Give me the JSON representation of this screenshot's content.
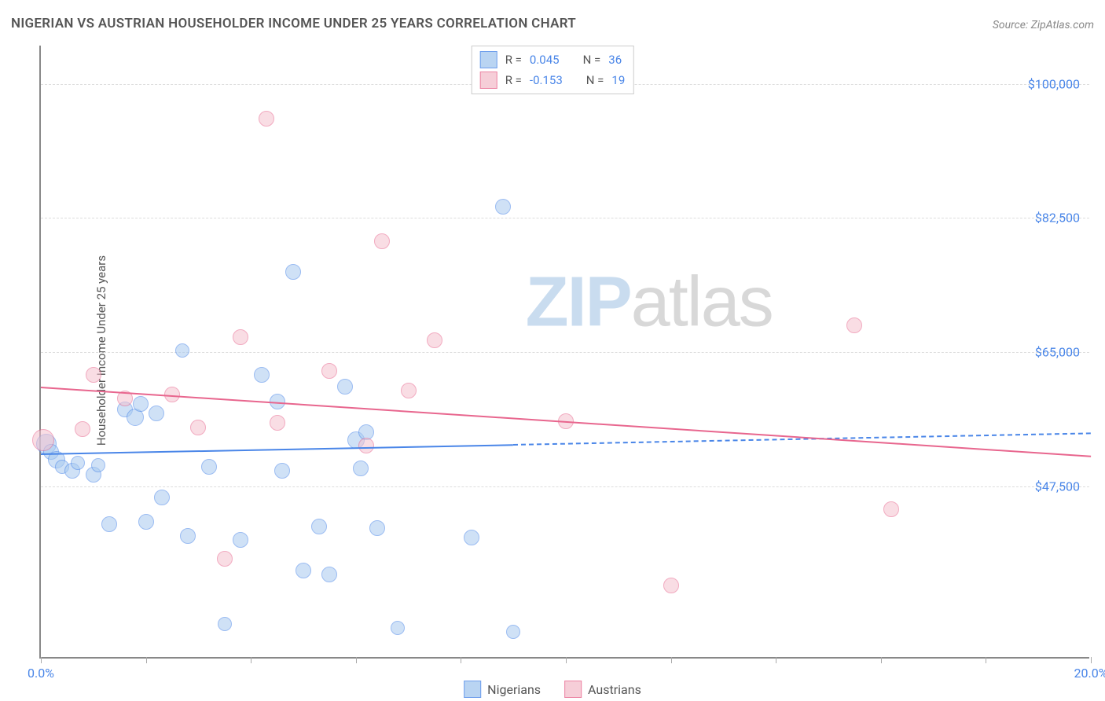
{
  "title": "NIGERIAN VS AUSTRIAN HOUSEHOLDER INCOME UNDER 25 YEARS CORRELATION CHART",
  "source": "Source: ZipAtlas.com",
  "y_axis_label": "Householder Income Under 25 years",
  "watermark_zip": "ZIP",
  "watermark_atlas": "atlas",
  "chart": {
    "type": "scatter",
    "background_color": "#ffffff",
    "grid_color": "#dddddd",
    "axis_color": "#888888",
    "xlim": [
      0,
      20
    ],
    "ylim": [
      25000,
      105000
    ],
    "x_ticks": [
      0,
      2,
      4,
      6,
      8,
      10,
      12,
      14,
      16,
      18,
      20
    ],
    "x_tick_labels": {
      "0": "0.0%",
      "20": "20.0%"
    },
    "y_gridlines": [
      47500,
      65000,
      82500,
      100000
    ],
    "y_tick_labels": {
      "47500": "$47,500",
      "65000": "$65,000",
      "82500": "$82,500",
      "100000": "$100,000"
    },
    "series": [
      {
        "name": "Nigerians",
        "fill_color": "#a8caf0",
        "stroke_color": "#4a86e8",
        "fill_opacity": 0.55,
        "marker_radius": 10,
        "r_value": "0.045",
        "n_value": "36",
        "trend": {
          "x1": 0,
          "y1": 51800,
          "x2": 9,
          "y2": 53000,
          "x2_dash": 20,
          "y2_dash": 54500,
          "color": "#4a86e8",
          "width": 2.5
        },
        "points": [
          {
            "x": 0.1,
            "y": 53000,
            "r": 13
          },
          {
            "x": 0.2,
            "y": 52000,
            "r": 10
          },
          {
            "x": 0.3,
            "y": 51000,
            "r": 11
          },
          {
            "x": 0.4,
            "y": 50000,
            "r": 9
          },
          {
            "x": 0.6,
            "y": 49500,
            "r": 10
          },
          {
            "x": 0.7,
            "y": 50500,
            "r": 9
          },
          {
            "x": 1.0,
            "y": 49000,
            "r": 10
          },
          {
            "x": 1.1,
            "y": 50200,
            "r": 9
          },
          {
            "x": 1.3,
            "y": 42500,
            "r": 10
          },
          {
            "x": 1.6,
            "y": 57500,
            "r": 10
          },
          {
            "x": 1.8,
            "y": 56500,
            "r": 11
          },
          {
            "x": 1.9,
            "y": 58200,
            "r": 10
          },
          {
            "x": 2.0,
            "y": 42800,
            "r": 10
          },
          {
            "x": 2.2,
            "y": 57000,
            "r": 10
          },
          {
            "x": 2.3,
            "y": 46000,
            "r": 10
          },
          {
            "x": 2.7,
            "y": 65200,
            "r": 9
          },
          {
            "x": 2.8,
            "y": 41000,
            "r": 10
          },
          {
            "x": 3.2,
            "y": 50000,
            "r": 10
          },
          {
            "x": 3.5,
            "y": 29500,
            "r": 9
          },
          {
            "x": 3.8,
            "y": 40500,
            "r": 10
          },
          {
            "x": 4.2,
            "y": 62000,
            "r": 10
          },
          {
            "x": 4.5,
            "y": 58500,
            "r": 10
          },
          {
            "x": 4.6,
            "y": 49500,
            "r": 10
          },
          {
            "x": 4.8,
            "y": 75500,
            "r": 10
          },
          {
            "x": 5.0,
            "y": 36500,
            "r": 10
          },
          {
            "x": 5.3,
            "y": 42200,
            "r": 10
          },
          {
            "x": 5.5,
            "y": 36000,
            "r": 10
          },
          {
            "x": 5.8,
            "y": 60500,
            "r": 10
          },
          {
            "x": 6.0,
            "y": 53500,
            "r": 11
          },
          {
            "x": 6.1,
            "y": 49800,
            "r": 10
          },
          {
            "x": 6.2,
            "y": 54500,
            "r": 10
          },
          {
            "x": 6.4,
            "y": 42000,
            "r": 10
          },
          {
            "x": 6.8,
            "y": 29000,
            "r": 9
          },
          {
            "x": 8.2,
            "y": 40800,
            "r": 10
          },
          {
            "x": 8.8,
            "y": 84000,
            "r": 10
          },
          {
            "x": 9.0,
            "y": 28500,
            "r": 9
          }
        ]
      },
      {
        "name": "Austrians",
        "fill_color": "#f5c2cf",
        "stroke_color": "#e8668e",
        "fill_opacity": 0.55,
        "marker_radius": 10,
        "r_value": "-0.153",
        "n_value": "19",
        "trend": {
          "x1": 0,
          "y1": 60500,
          "x2": 20,
          "y2": 51500,
          "color": "#e8668e",
          "width": 2.5
        },
        "points": [
          {
            "x": 0.05,
            "y": 53500,
            "r": 14
          },
          {
            "x": 0.8,
            "y": 55000,
            "r": 10
          },
          {
            "x": 1.0,
            "y": 62000,
            "r": 10
          },
          {
            "x": 1.6,
            "y": 59000,
            "r": 10
          },
          {
            "x": 2.5,
            "y": 59500,
            "r": 10
          },
          {
            "x": 3.0,
            "y": 55200,
            "r": 10
          },
          {
            "x": 3.5,
            "y": 38000,
            "r": 10
          },
          {
            "x": 3.8,
            "y": 67000,
            "r": 10
          },
          {
            "x": 4.3,
            "y": 95500,
            "r": 10
          },
          {
            "x": 4.5,
            "y": 55800,
            "r": 10
          },
          {
            "x": 5.5,
            "y": 62500,
            "r": 10
          },
          {
            "x": 6.2,
            "y": 52800,
            "r": 10
          },
          {
            "x": 6.5,
            "y": 79500,
            "r": 10
          },
          {
            "x": 7.0,
            "y": 60000,
            "r": 10
          },
          {
            "x": 7.5,
            "y": 66500,
            "r": 10
          },
          {
            "x": 10.0,
            "y": 56000,
            "r": 10
          },
          {
            "x": 12.0,
            "y": 34500,
            "r": 10
          },
          {
            "x": 15.5,
            "y": 68500,
            "r": 10
          },
          {
            "x": 16.2,
            "y": 44500,
            "r": 10
          }
        ]
      }
    ]
  },
  "legend_top": {
    "r_label": "R =",
    "n_label": "N ="
  },
  "legend_bottom_labels": [
    "Nigerians",
    "Austrians"
  ]
}
